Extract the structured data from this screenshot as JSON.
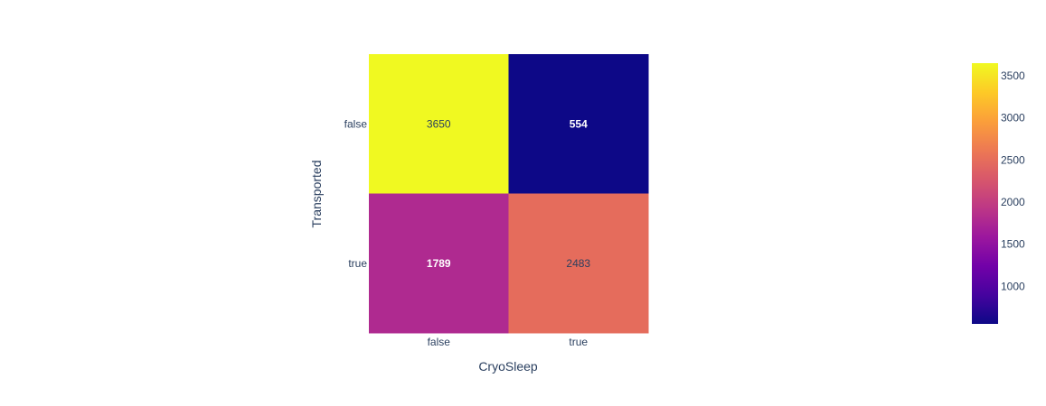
{
  "chart_data": {
    "type": "heatmap",
    "x_categories": [
      "false",
      "true"
    ],
    "y_categories": [
      "false",
      "true"
    ],
    "z": [
      [
        3650,
        554
      ],
      [
        1789,
        2483
      ]
    ],
    "xlabel": "CryoSleep",
    "ylabel": "Transported",
    "colorscale": "Plasma",
    "colorbar": {
      "range": [
        554,
        3650
      ],
      "ticks": [
        1000,
        1500,
        2000,
        2500,
        3000,
        3500
      ],
      "tick_labels": [
        "1000",
        "1500",
        "2000",
        "2500",
        "3000",
        "3500"
      ]
    }
  },
  "colors": {
    "text_dark": "#2a3f5f",
    "text_light": "#ffffff"
  }
}
